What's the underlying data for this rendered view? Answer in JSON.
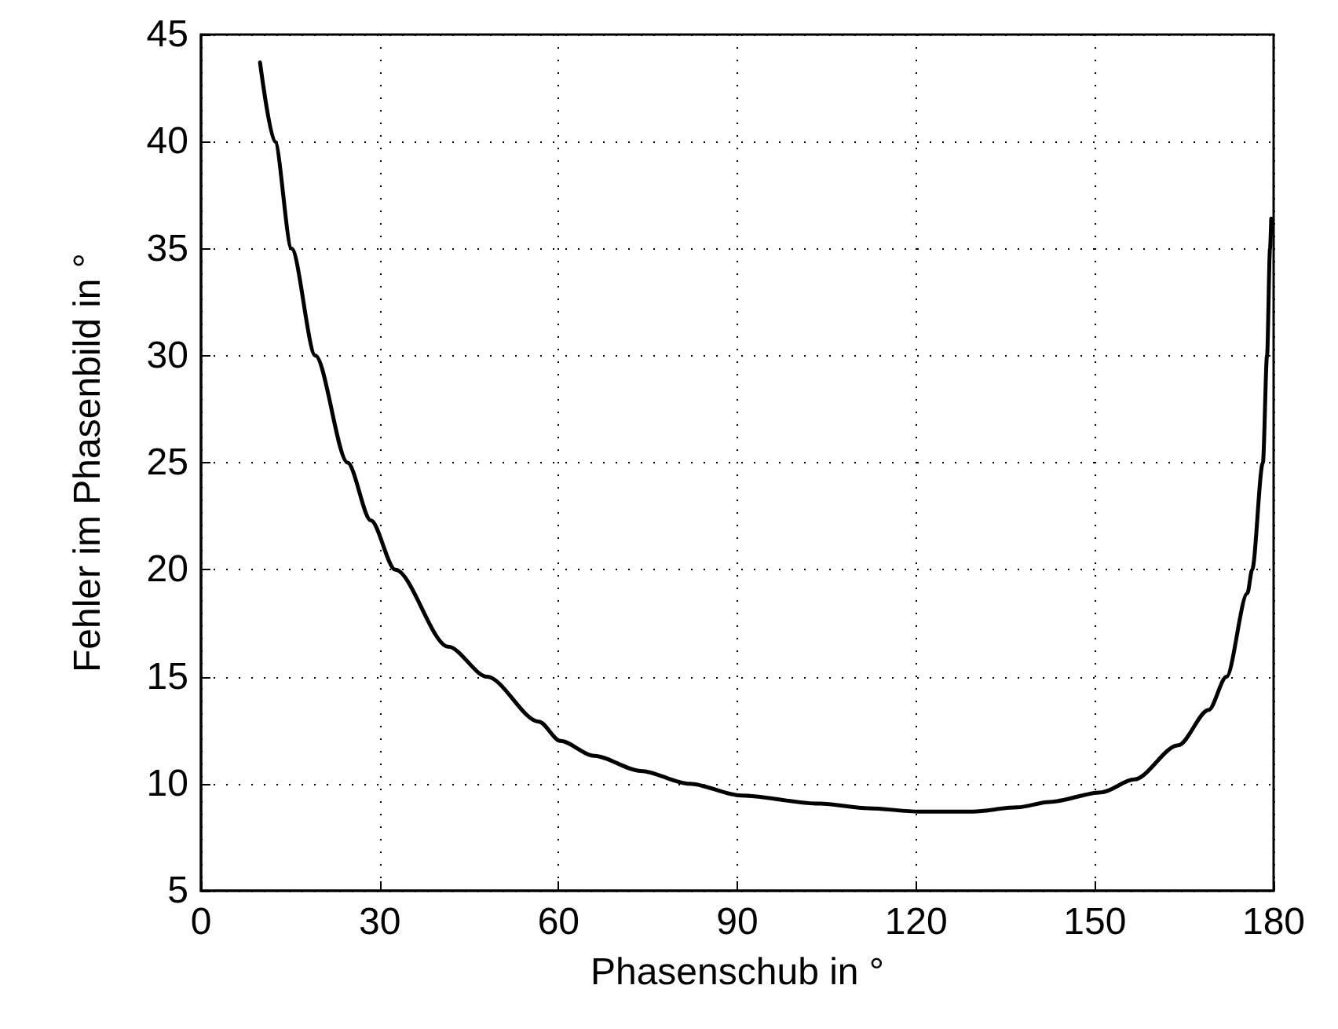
{
  "chart_data": {
    "type": "line",
    "xlabel": "Phasenschub in °",
    "ylabel": "Fehler im Phasenbild in °",
    "series": [
      {
        "color": "#000000",
        "x": [
          9.9,
          12.4,
          15.2,
          19.2,
          24.6,
          28.5,
          32.6,
          41.5,
          48,
          56.7,
          60.3,
          66,
          73.8,
          82,
          90.6,
          103.8,
          112,
          120.5,
          129.5,
          137,
          142.4,
          151.1,
          156.6,
          164,
          169.1,
          172.1,
          175.6,
          176.4,
          178.2,
          178.9,
          179.4,
          179.6
        ],
        "values": [
          43.7,
          40,
          35,
          30,
          25,
          22.3,
          20,
          16.4,
          15,
          12.9,
          12,
          11.3,
          10.6,
          10,
          9.45,
          9.07,
          8.85,
          8.7,
          8.7,
          8.9,
          9.15,
          9.6,
          10.2,
          11.8,
          13.45,
          15,
          18.9,
          20,
          25,
          30,
          35,
          36.4
        ]
      }
    ],
    "xlim": [
      0,
      180
    ],
    "xticks": [
      0,
      30,
      60,
      90,
      120,
      150,
      180
    ],
    "ylim": [
      5,
      45
    ],
    "yticks": [
      5,
      10,
      15,
      20,
      25,
      30,
      35,
      40,
      45
    ],
    "grid": true,
    "line_style": "solid",
    "marker": "none"
  }
}
